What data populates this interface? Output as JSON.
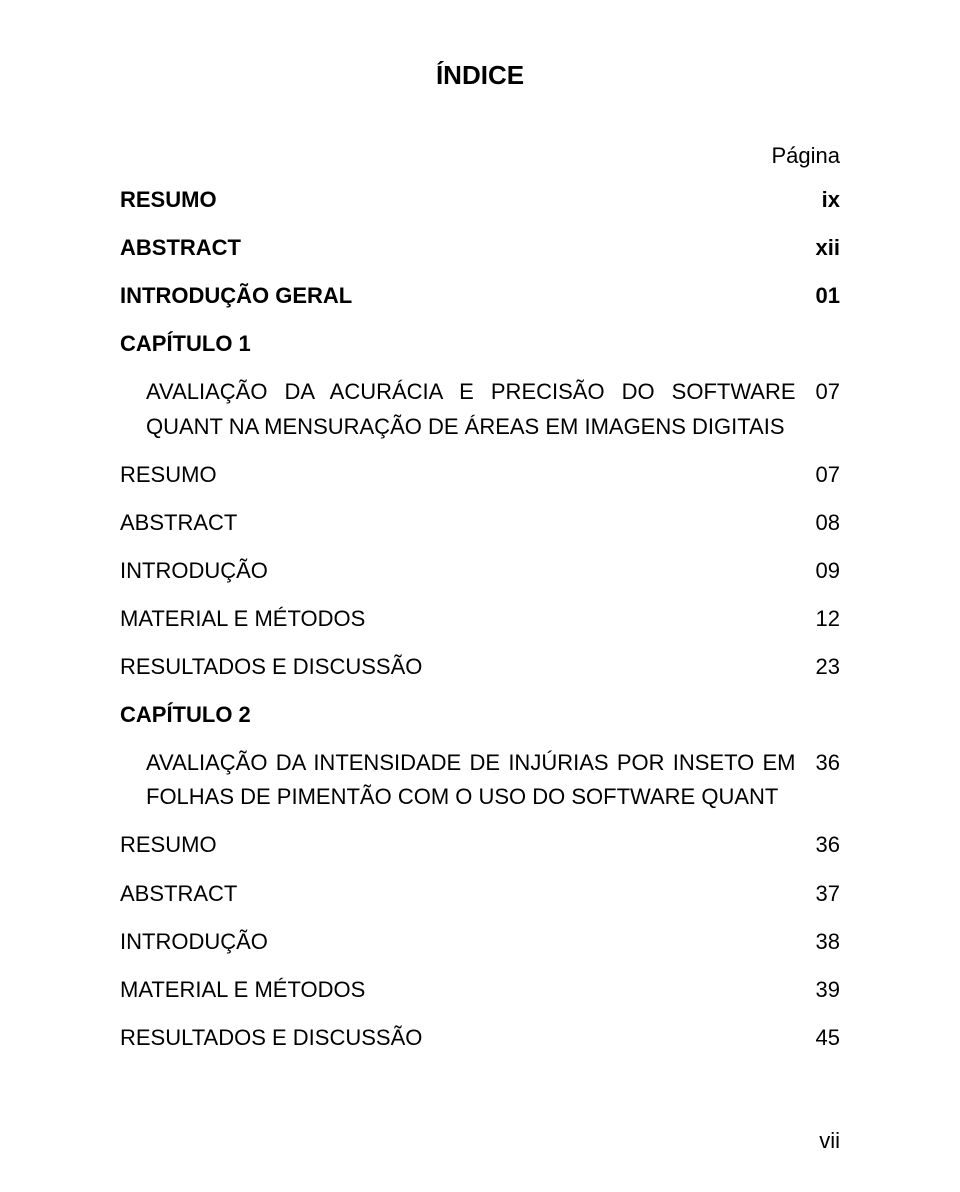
{
  "title": "ÍNDICE",
  "page_header_label": "Página",
  "footer_page": "vii",
  "entries": [
    {
      "label": "RESUMO",
      "page": "ix",
      "bold": true
    },
    {
      "label": "ABSTRACT",
      "page": "xii",
      "bold": true
    },
    {
      "label": "INTRODUÇÃO GERAL",
      "page": "01",
      "bold": true
    },
    {
      "label": "CAPÍTULO 1",
      "page": "",
      "bold": true
    },
    {
      "label": "AVALIAÇÃO DA ACURÁCIA E PRECISÃO DO SOFTWARE QUANT NA MENSURAÇÃO DE ÁREAS EM IMAGENS DIGITAIS",
      "page": "07",
      "bold": false,
      "indent": true
    },
    {
      "label": "RESUMO",
      "page": "07",
      "bold": false
    },
    {
      "label": "ABSTRACT",
      "page": "08",
      "bold": false
    },
    {
      "label": "INTRODUÇÃO",
      "page": "09",
      "bold": false
    },
    {
      "label": "MATERIAL E MÉTODOS",
      "page": "12",
      "bold": false
    },
    {
      "label": "RESULTADOS E DISCUSSÃO",
      "page": "23",
      "bold": false
    },
    {
      "label": "CAPÍTULO 2",
      "page": "",
      "bold": true
    },
    {
      "label": "AVALIAÇÃO DA INTENSIDADE DE INJÚRIAS POR INSETO EM FOLHAS DE PIMENTÃO COM O USO DO SOFTWARE QUANT",
      "page": "36",
      "bold": false,
      "indent": true
    },
    {
      "label": "RESUMO",
      "page": "36",
      "bold": false
    },
    {
      "label": "ABSTRACT",
      "page": "37",
      "bold": false
    },
    {
      "label": "INTRODUÇÃO",
      "page": "38",
      "bold": false
    },
    {
      "label": "MATERIAL E MÉTODOS",
      "page": "39",
      "bold": false
    },
    {
      "label": "RESULTADOS E DISCUSSÃO",
      "page": "45",
      "bold": false
    }
  ]
}
